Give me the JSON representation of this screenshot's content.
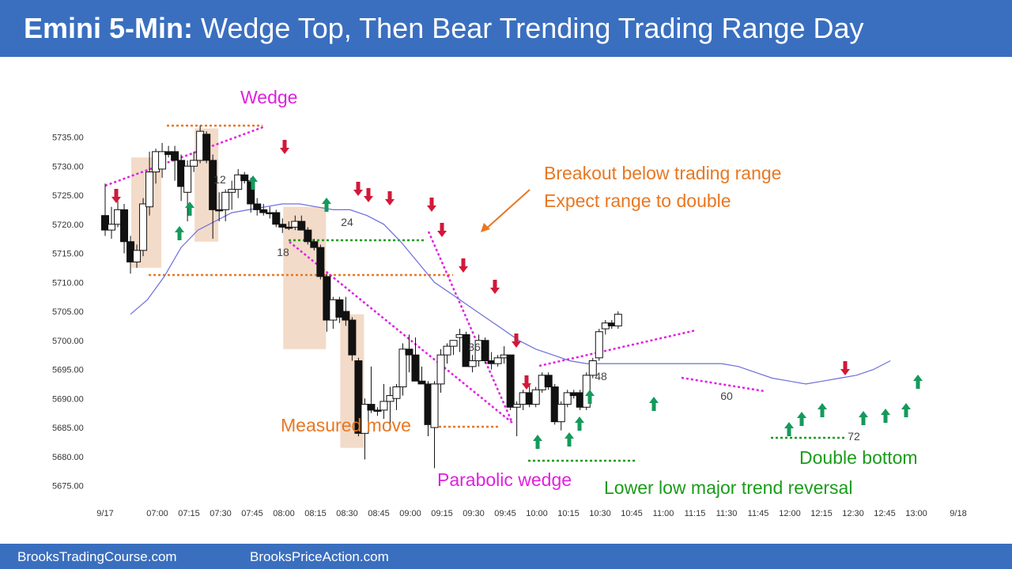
{
  "header": {
    "title_bold": "Emini 5-Min:",
    "title_rest": "Wedge Top, Then Bear Trending Trading Range Day"
  },
  "footer": {
    "left": "BrooksTradingCourse.com",
    "right": "BrooksPriceAction.com"
  },
  "colors": {
    "header_bg": "#3a6fbf",
    "bull_arrow": "#149a5c",
    "bear_arrow": "#d1193a",
    "magenta": "#e020e0",
    "orange": "#e87722",
    "green": "#1a9c1a",
    "ema": "#6d6ddb",
    "highlight": "#f0d2bc"
  },
  "chart_data": {
    "type": "candlestick",
    "ylim": [
      5673,
      5740
    ],
    "y_ticks": [
      "5735.00",
      "5730.00",
      "5725.00",
      "5720.00",
      "5715.00",
      "5710.00",
      "5705.00",
      "5700.00",
      "5695.00",
      "5690.00",
      "5685.00",
      "5680.00",
      "5675.00"
    ],
    "x_ticks": [
      "9/17",
      "07:00",
      "07:15",
      "07:30",
      "07:45",
      "08:00",
      "08:15",
      "08:30",
      "08:45",
      "09:00",
      "09:15",
      "09:30",
      "09:45",
      "10:00",
      "10:15",
      "10:30",
      "10:45",
      "11:00",
      "11:15",
      "11:30",
      "11:45",
      "12:00",
      "12:15",
      "12:30",
      "12:45",
      "13:00",
      "9/18"
    ],
    "bars": [
      {
        "o": 5721.5,
        "h": 5727.0,
        "l": 5718.0,
        "c": 5719.0
      },
      {
        "o": 5719.0,
        "h": 5723.0,
        "l": 5717.5,
        "c": 5720.0
      },
      {
        "o": 5720.0,
        "h": 5724.0,
        "l": 5719.5,
        "c": 5722.5
      },
      {
        "o": 5722.5,
        "h": 5723.5,
        "l": 5715.0,
        "c": 5717.0
      },
      {
        "o": 5717.0,
        "h": 5718.0,
        "l": 5711.5,
        "c": 5713.5
      },
      {
        "o": 5713.5,
        "h": 5716.5,
        "l": 5712.5,
        "c": 5715.5
      },
      {
        "o": 5715.5,
        "h": 5724.5,
        "l": 5714.5,
        "c": 5723.5
      },
      {
        "o": 5723.0,
        "h": 5732.5,
        "l": 5721.5,
        "c": 5729.0
      },
      {
        "o": 5729.0,
        "h": 5733.0,
        "l": 5727.0,
        "c": 5732.5
      },
      {
        "o": 5729.5,
        "h": 5734.0,
        "l": 5728.0,
        "c": 5732.5
      },
      {
        "o": 5732.5,
        "h": 5733.5,
        "l": 5731.5,
        "c": 5732.0
      },
      {
        "o": 5732.5,
        "h": 5733.5,
        "l": 5727.5,
        "c": 5731.0
      },
      {
        "o": 5731.0,
        "h": 5732.0,
        "l": 5724.0,
        "c": 5726.5
      },
      {
        "o": 5725.5,
        "h": 5731.0,
        "l": 5720.5,
        "c": 5730.0
      },
      {
        "o": 5730.0,
        "h": 5732.5,
        "l": 5729.0,
        "c": 5731.0
      },
      {
        "o": 5731.0,
        "h": 5737.0,
        "l": 5730.5,
        "c": 5736.0
      },
      {
        "o": 5735.5,
        "h": 5736.0,
        "l": 5730.5,
        "c": 5731.0
      },
      {
        "o": 5731.0,
        "h": 5732.0,
        "l": 5717.5,
        "c": 5722.5
      },
      {
        "o": 5722.5,
        "h": 5725.5,
        "l": 5720.5,
        "c": 5722.5
      },
      {
        "o": 5722.5,
        "h": 5726.0,
        "l": 5720.5,
        "c": 5725.5
      },
      {
        "o": 5725.5,
        "h": 5727.5,
        "l": 5722.5,
        "c": 5726.0
      },
      {
        "o": 5726.0,
        "h": 5729.5,
        "l": 5724.5,
        "c": 5728.5
      },
      {
        "o": 5728.5,
        "h": 5729.0,
        "l": 5727.0,
        "c": 5727.5
      },
      {
        "o": 5727.5,
        "h": 5728.0,
        "l": 5722.0,
        "c": 5723.5
      },
      {
        "o": 5723.5,
        "h": 5724.5,
        "l": 5721.5,
        "c": 5722.5
      },
      {
        "o": 5722.5,
        "h": 5723.5,
        "l": 5721.5,
        "c": 5722.0
      },
      {
        "o": 5722.0,
        "h": 5723.0,
        "l": 5721.0,
        "c": 5722.0
      },
      {
        "o": 5722.0,
        "h": 5722.5,
        "l": 5719.5,
        "c": 5720.0
      },
      {
        "o": 5720.0,
        "h": 5721.0,
        "l": 5718.5,
        "c": 5719.5
      },
      {
        "o": 5719.5,
        "h": 5720.5,
        "l": 5719.0,
        "c": 5719.5
      },
      {
        "o": 5719.5,
        "h": 5721.5,
        "l": 5719.0,
        "c": 5720.5
      },
      {
        "o": 5720.5,
        "h": 5721.5,
        "l": 5719.0,
        "c": 5719.0
      },
      {
        "o": 5719.0,
        "h": 5719.5,
        "l": 5716.5,
        "c": 5717.0
      },
      {
        "o": 5717.0,
        "h": 5717.5,
        "l": 5715.5,
        "c": 5716.0
      },
      {
        "o": 5716.0,
        "h": 5716.5,
        "l": 5710.5,
        "c": 5711.0
      },
      {
        "o": 5711.0,
        "h": 5711.5,
        "l": 5701.5,
        "c": 5703.5
      },
      {
        "o": 5703.5,
        "h": 5707.5,
        "l": 5702.0,
        "c": 5707.0
      },
      {
        "o": 5707.0,
        "h": 5707.5,
        "l": 5703.0,
        "c": 5704.0
      },
      {
        "o": 5705.0,
        "h": 5707.5,
        "l": 5702.5,
        "c": 5703.5
      },
      {
        "o": 5703.5,
        "h": 5704.0,
        "l": 5696.5,
        "c": 5697.5
      },
      {
        "o": 5696.5,
        "h": 5697.0,
        "l": 5683.5,
        "c": 5684.0
      },
      {
        "o": 5684.0,
        "h": 5690.0,
        "l": 5679.5,
        "c": 5689.0
      },
      {
        "o": 5689.0,
        "h": 5695.5,
        "l": 5687.5,
        "c": 5688.0
      },
      {
        "o": 5688.0,
        "h": 5688.5,
        "l": 5687.0,
        "c": 5688.0
      },
      {
        "o": 5688.0,
        "h": 5692.5,
        "l": 5686.5,
        "c": 5689.5
      },
      {
        "o": 5689.5,
        "h": 5692.0,
        "l": 5684.5,
        "c": 5690.5
      },
      {
        "o": 5690.0,
        "h": 5692.5,
        "l": 5688.0,
        "c": 5692.0
      },
      {
        "o": 5692.0,
        "h": 5699.5,
        "l": 5690.5,
        "c": 5698.5
      },
      {
        "o": 5698.5,
        "h": 5701.0,
        "l": 5694.5,
        "c": 5697.5
      },
      {
        "o": 5697.5,
        "h": 5700.5,
        "l": 5693.0,
        "c": 5693.0
      },
      {
        "o": 5693.0,
        "h": 5695.5,
        "l": 5692.5,
        "c": 5692.5
      },
      {
        "o": 5692.5,
        "h": 5693.0,
        "l": 5683.5,
        "c": 5685.5
      },
      {
        "o": 5685.0,
        "h": 5693.0,
        "l": 5678.0,
        "c": 5692.5
      },
      {
        "o": 5692.5,
        "h": 5698.5,
        "l": 5691.0,
        "c": 5697.5
      },
      {
        "o": 5697.5,
        "h": 5699.5,
        "l": 5696.0,
        "c": 5699.0
      },
      {
        "o": 5699.0,
        "h": 5700.0,
        "l": 5697.5,
        "c": 5700.0
      },
      {
        "o": 5700.5,
        "h": 5702.0,
        "l": 5698.0,
        "c": 5701.0
      },
      {
        "o": 5701.0,
        "h": 5701.5,
        "l": 5695.5,
        "c": 5695.5
      },
      {
        "o": 5695.5,
        "h": 5697.5,
        "l": 5694.5,
        "c": 5696.5
      },
      {
        "o": 5696.5,
        "h": 5701.0,
        "l": 5695.5,
        "c": 5700.0
      },
      {
        "o": 5700.0,
        "h": 5700.5,
        "l": 5696.0,
        "c": 5696.5
      },
      {
        "o": 5696.5,
        "h": 5698.0,
        "l": 5695.0,
        "c": 5696.0
      },
      {
        "o": 5696.0,
        "h": 5697.5,
        "l": 5695.5,
        "c": 5697.0
      },
      {
        "o": 5697.0,
        "h": 5699.0,
        "l": 5696.0,
        "c": 5697.5
      },
      {
        "o": 5697.5,
        "h": 5697.5,
        "l": 5688.0,
        "c": 5688.5
      },
      {
        "o": 5688.5,
        "h": 5689.5,
        "l": 5683.5,
        "c": 5689.0
      },
      {
        "o": 5689.0,
        "h": 5691.5,
        "l": 5688.0,
        "c": 5691.0
      },
      {
        "o": 5691.0,
        "h": 5692.5,
        "l": 5688.5,
        "c": 5689.0
      },
      {
        "o": 5689.0,
        "h": 5692.0,
        "l": 5688.5,
        "c": 5691.5
      },
      {
        "o": 5691.5,
        "h": 5694.5,
        "l": 5691.0,
        "c": 5694.0
      },
      {
        "o": 5694.0,
        "h": 5694.5,
        "l": 5691.5,
        "c": 5692.0
      },
      {
        "o": 5692.0,
        "h": 5692.5,
        "l": 5685.5,
        "c": 5686.0
      },
      {
        "o": 5686.0,
        "h": 5689.5,
        "l": 5684.5,
        "c": 5689.0
      },
      {
        "o": 5689.0,
        "h": 5691.5,
        "l": 5688.5,
        "c": 5691.0
      },
      {
        "o": 5691.0,
        "h": 5691.5,
        "l": 5690.0,
        "c": 5690.5
      },
      {
        "o": 5691.0,
        "h": 5691.5,
        "l": 5688.0,
        "c": 5688.5
      },
      {
        "o": 5688.5,
        "h": 5694.5,
        "l": 5688.0,
        "c": 5694.0
      },
      {
        "o": 5694.0,
        "h": 5697.0,
        "l": 5693.5,
        "c": 5696.5
      },
      {
        "o": 5697.0,
        "h": 5702.0,
        "l": 5696.5,
        "c": 5701.5
      },
      {
        "o": 5702.0,
        "h": 5703.5,
        "l": 5701.0,
        "c": 5703.0
      },
      {
        "o": 5703.0,
        "h": 5703.5,
        "l": 5702.0,
        "c": 5702.5
      },
      {
        "o": 5702.5,
        "h": 5705.0,
        "l": 5702.0,
        "c": 5704.5
      }
    ],
    "ema": [
      [
        6,
        5704.5
      ],
      [
        10,
        5707
      ],
      [
        14,
        5711
      ],
      [
        18,
        5716
      ],
      [
        22,
        5719
      ],
      [
        26,
        5720.5
      ],
      [
        30,
        5722
      ],
      [
        34,
        5722.5
      ],
      [
        38,
        5723
      ],
      [
        42,
        5723.5
      ],
      [
        46,
        5723.5
      ],
      [
        50,
        5723
      ],
      [
        54,
        5722.5
      ],
      [
        58,
        5722.5
      ],
      [
        62,
        5721.5
      ],
      [
        66,
        5720
      ],
      [
        70,
        5717
      ],
      [
        74,
        5713.5
      ],
      [
        78,
        5710
      ],
      [
        82,
        5708
      ],
      [
        86,
        5706
      ],
      [
        90,
        5704
      ],
      [
        94,
        5702
      ],
      [
        98,
        5700
      ],
      [
        102,
        5698.5
      ],
      [
        106,
        5697.5
      ],
      [
        110,
        5696.5
      ],
      [
        114,
        5696
      ],
      [
        118,
        5696
      ],
      [
        122,
        5696
      ],
      [
        126,
        5696
      ],
      [
        130,
        5696
      ],
      [
        134,
        5696
      ],
      [
        138,
        5696
      ],
      [
        142,
        5696
      ],
      [
        146,
        5696
      ],
      [
        150,
        5695.5
      ],
      [
        154,
        5694.5
      ],
      [
        158,
        5693.5
      ],
      [
        162,
        5693
      ],
      [
        166,
        5692.5
      ],
      [
        170,
        5693
      ],
      [
        174,
        5693.5
      ],
      [
        178,
        5694
      ],
      [
        182,
        5695
      ],
      [
        186,
        5696.5
      ]
    ],
    "bar_labels": [
      {
        "text": "12",
        "bar": 11,
        "price": 5727.2
      },
      {
        "text": "18",
        "bar": 17,
        "price": 5714.2
      },
      {
        "text": "24",
        "bar": 23,
        "price": 5719.8
      },
      {
        "text": "36",
        "bar": 35,
        "price": 5698.3
      },
      {
        "text": "48",
        "bar": 47,
        "price": 5693.5
      },
      {
        "text": "60",
        "bar": 59,
        "price": 5689.8
      },
      {
        "text": "72",
        "bar": 71,
        "price": 5683.0
      }
    ],
    "bull_arrow_bars": [
      7,
      7,
      13,
      19,
      40,
      45,
      47,
      51,
      60,
      63,
      64,
      66,
      68,
      70,
      72,
      76
    ],
    "bear_arrow_bars": [
      2,
      17,
      25,
      26,
      28,
      32,
      33,
      35,
      38,
      40,
      41,
      67
    ],
    "annotations": {
      "wedge": "Wedge",
      "breakout_line1": "Breakout below trading range",
      "breakout_line2": "Expect range to double",
      "measured_move": "Measured move",
      "parabolic_wedge": "Parabolic wedge",
      "lower_low": "Lower low major trend reversal",
      "double_bottom": "Double bottom"
    }
  }
}
